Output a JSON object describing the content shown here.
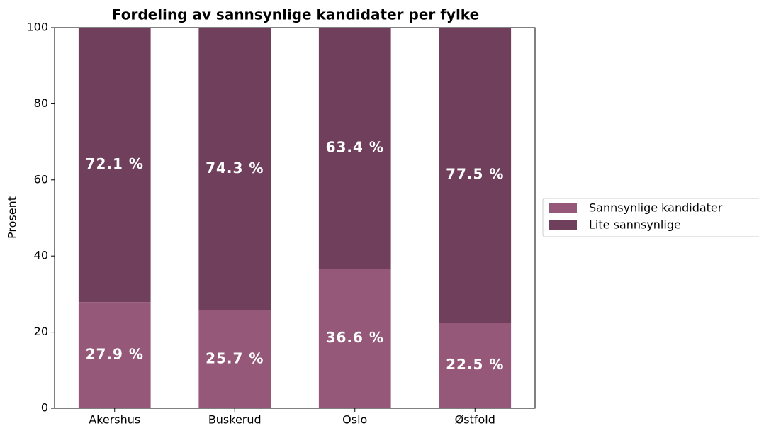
{
  "chart_data": {
    "type": "stacked_bar",
    "title": "Fordeling av sannsynlige kandidater per fylke",
    "ylabel": "Prosent",
    "categories": [
      "Akershus",
      "Buskerud",
      "Oslo",
      "Østfold"
    ],
    "series": [
      {
        "name": "Sannsynlige kandidater",
        "color": "#955878",
        "values": [
          27.9,
          25.7,
          36.6,
          22.5
        ],
        "value_labels": [
          "27.9 %",
          "25.7 %",
          "36.6 %",
          "22.5 %"
        ]
      },
      {
        "name": "Lite sannsynlige",
        "color": "#6f3f5c",
        "values": [
          72.1,
          74.3,
          63.4,
          77.5
        ],
        "value_labels": [
          "72.1 %",
          "74.3 %",
          "63.4 %",
          "77.5 %"
        ]
      }
    ],
    "ylim": [
      0,
      100
    ],
    "yticks": [
      0,
      20,
      40,
      60,
      80,
      100
    ],
    "grid": false,
    "legend": "outside right"
  }
}
